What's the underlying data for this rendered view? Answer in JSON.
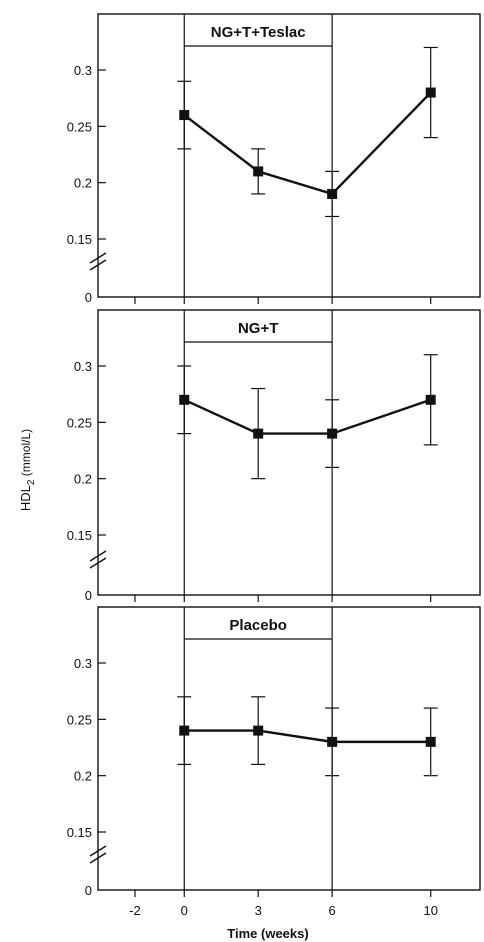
{
  "chart_data": [
    {
      "type": "line",
      "title": "NG+T+Teslac",
      "x": [
        0,
        3,
        6,
        10
      ],
      "y": [
        0.26,
        0.21,
        0.19,
        0.28
      ],
      "error": [
        0.03,
        0.02,
        0.02,
        0.04
      ],
      "xlim": [
        -3.5,
        12
      ],
      "yticks": [
        "0.3",
        "0.25",
        "0.2",
        "0.15",
        "0"
      ],
      "treatment_period": [
        0,
        6
      ]
    },
    {
      "type": "line",
      "title": "NG+T",
      "x": [
        0,
        3,
        6,
        10
      ],
      "y": [
        0.27,
        0.24,
        0.24,
        0.27
      ],
      "error": [
        0.03,
        0.04,
        0.03,
        0.04
      ],
      "xlim": [
        -3.5,
        12
      ],
      "yticks": [
        "0.3",
        "0.25",
        "0.2",
        "0.15",
        "0"
      ],
      "treatment_period": [
        0,
        6
      ]
    },
    {
      "type": "line",
      "title": "Placebo",
      "x": [
        0,
        3,
        6,
        10
      ],
      "y": [
        0.24,
        0.24,
        0.23,
        0.23
      ],
      "error": [
        0.03,
        0.03,
        0.03,
        0.03
      ],
      "xlim": [
        -3.5,
        12
      ],
      "yticks": [
        "0.3",
        "0.25",
        "0.2",
        "0.15",
        "0"
      ],
      "treatment_period": [
        0,
        6
      ]
    }
  ],
  "shared": {
    "ylabel_main": "HDL",
    "ylabel_sub": "2",
    "ylabel_unit": " (mmol/L)",
    "xlabel": "Time (weeks)",
    "xticks": [
      "-2",
      "0",
      "3",
      "6",
      "10"
    ],
    "xtick_values": [
      -2,
      0,
      3,
      6,
      10
    ]
  },
  "colors": {
    "ink": "#111111",
    "background": "#ffffff"
  }
}
